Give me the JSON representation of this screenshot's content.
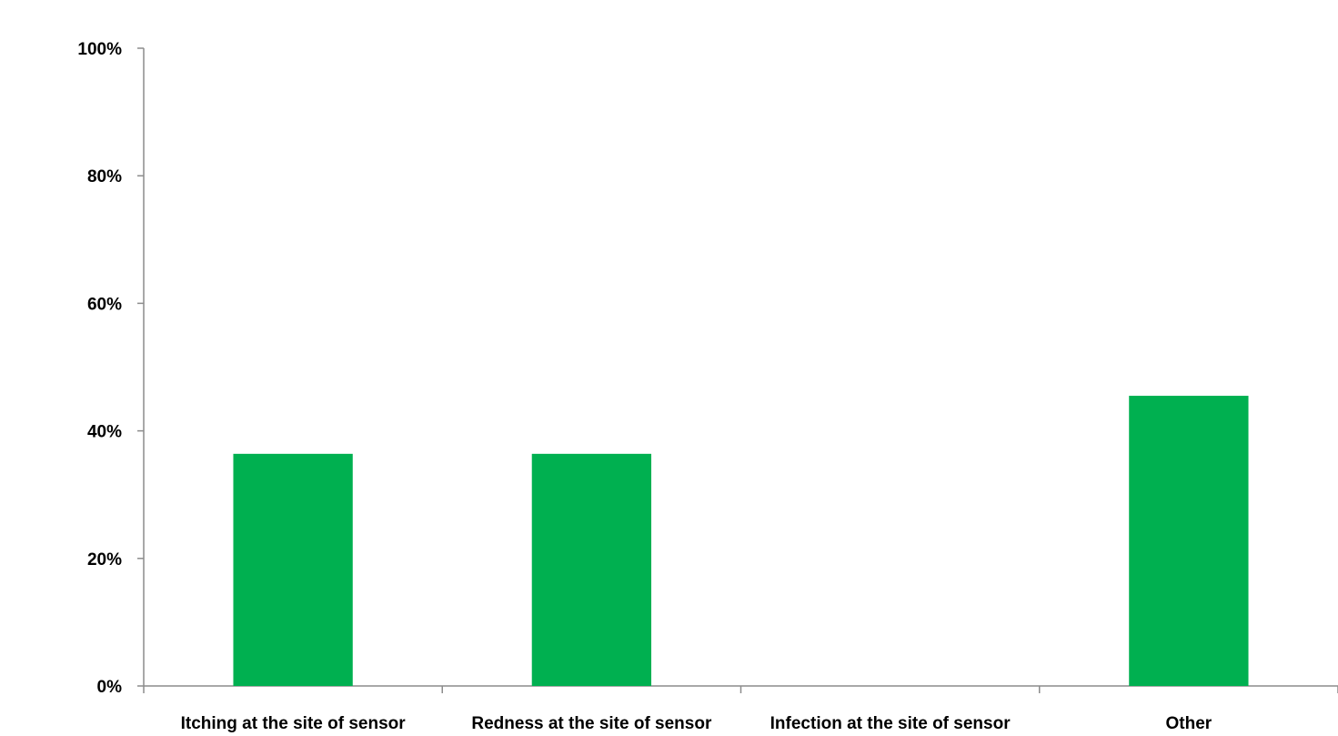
{
  "chart_data": {
    "type": "bar",
    "categories": [
      "Itching at the site of sensor",
      "Redness at the site of sensor",
      "Infection at the site of sensor",
      "Other"
    ],
    "values": [
      36.4,
      36.4,
      0,
      45.5
    ],
    "ylim": [
      0,
      100
    ],
    "yticks": [
      "0%",
      "20%",
      "40%",
      "60%",
      "80%",
      "100%"
    ],
    "ytick_values": [
      0,
      20,
      40,
      60,
      80,
      100
    ],
    "title": "",
    "xlabel": "",
    "ylabel": "",
    "grid": false,
    "legend": false,
    "bar_color": "#00B050",
    "axis_color": "#8C8C8C"
  }
}
